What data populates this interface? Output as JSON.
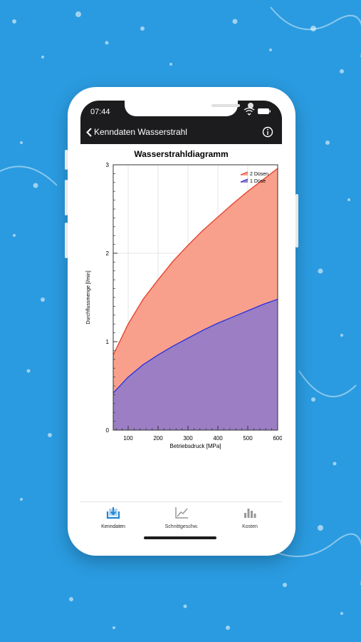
{
  "colors": {
    "background": "#2a9be0",
    "header": "#1c1c1e",
    "series_2_fill": "#f9a08c",
    "series_2_line": "#e53b25",
    "series_1_fill": "#9b7ec4",
    "series_1_line": "#2630e0",
    "tab_active": "#1e88d8",
    "tab_inactive": "#888888"
  },
  "status": {
    "time": "07:44"
  },
  "nav": {
    "back_label": "Kenndaten Wasserstrahl",
    "info_icon": "info-circle-icon"
  },
  "tabs": [
    {
      "label": "Kenndaten",
      "icon": "download-tray-icon",
      "active": true
    },
    {
      "label": "Schnittgeschw.",
      "icon": "line-chart-icon",
      "active": false
    },
    {
      "label": "Kosten",
      "icon": "bar-chart-icon",
      "active": false
    }
  ],
  "chart_data": {
    "type": "area",
    "title": "Wasserstrahldiagramm",
    "xlabel": "Betriebsdruck [MPa]",
    "ylabel": "Durchflussmenge [l/min]",
    "xlim": [
      50,
      600
    ],
    "ylim": [
      0,
      3
    ],
    "x_ticks": [
      100,
      200,
      300,
      400,
      500,
      600
    ],
    "y_ticks": [
      0,
      1,
      2,
      3
    ],
    "grid": true,
    "legend_position": "top-right",
    "x": [
      50,
      100,
      150,
      200,
      250,
      300,
      350,
      400,
      450,
      500,
      550,
      600
    ],
    "series": [
      {
        "name": "2 Düsen",
        "values": [
          0.85,
          1.2,
          1.48,
          1.7,
          1.91,
          2.09,
          2.26,
          2.41,
          2.56,
          2.7,
          2.83,
          2.96
        ]
      },
      {
        "name": "1 Düse",
        "values": [
          0.42,
          0.6,
          0.74,
          0.85,
          0.95,
          1.04,
          1.13,
          1.21,
          1.28,
          1.35,
          1.42,
          1.48
        ]
      }
    ]
  }
}
